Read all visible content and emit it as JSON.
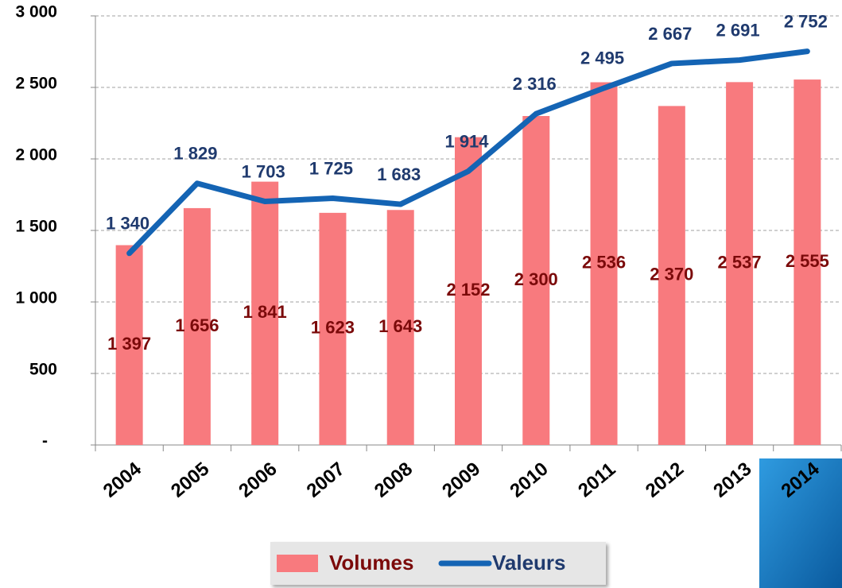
{
  "chart_data": {
    "type": "bar",
    "categories": [
      "2004",
      "2005",
      "2006",
      "2007",
      "2008",
      "2009",
      "2010",
      "2011",
      "2012",
      "2013",
      "2014"
    ],
    "series": [
      {
        "name": "Volumes",
        "type": "bar",
        "color": "#f87a7e",
        "label_color": "#7b0a0a",
        "values": [
          1397,
          1656,
          1841,
          1623,
          1643,
          2152,
          2300,
          2536,
          2370,
          2537,
          2555
        ],
        "value_labels": [
          "1 397",
          "1 656",
          "1 841",
          "1 623",
          "1 643",
          "2 152",
          "2 300",
          "2 536",
          "2 370",
          "2 537",
          "2 555"
        ]
      },
      {
        "name": "Valeurs",
        "type": "line",
        "color": "#1464b4",
        "label_color": "#1f3a6e",
        "values": [
          1340,
          1829,
          1703,
          1725,
          1683,
          1914,
          2316,
          2495,
          2667,
          2691,
          2752
        ],
        "value_labels": [
          "1 340",
          "1 829",
          "1 703",
          "1 725",
          "1 683",
          "1 914",
          "2 316",
          "2 495",
          "2 667",
          "2 691",
          "2 752"
        ]
      }
    ],
    "ylim": [
      0,
      3000
    ],
    "yticks": [
      {
        "value": 0,
        "label": "-"
      },
      500,
      {
        "value": 1000,
        "label": "1 000"
      },
      {
        "value": 1500,
        "label": "1 500"
      },
      {
        "value": 2000,
        "label": "2 000"
      },
      {
        "value": 2500,
        "label": "2 500"
      },
      {
        "value": 3000,
        "label": "3 000"
      }
    ],
    "grid": true
  }
}
